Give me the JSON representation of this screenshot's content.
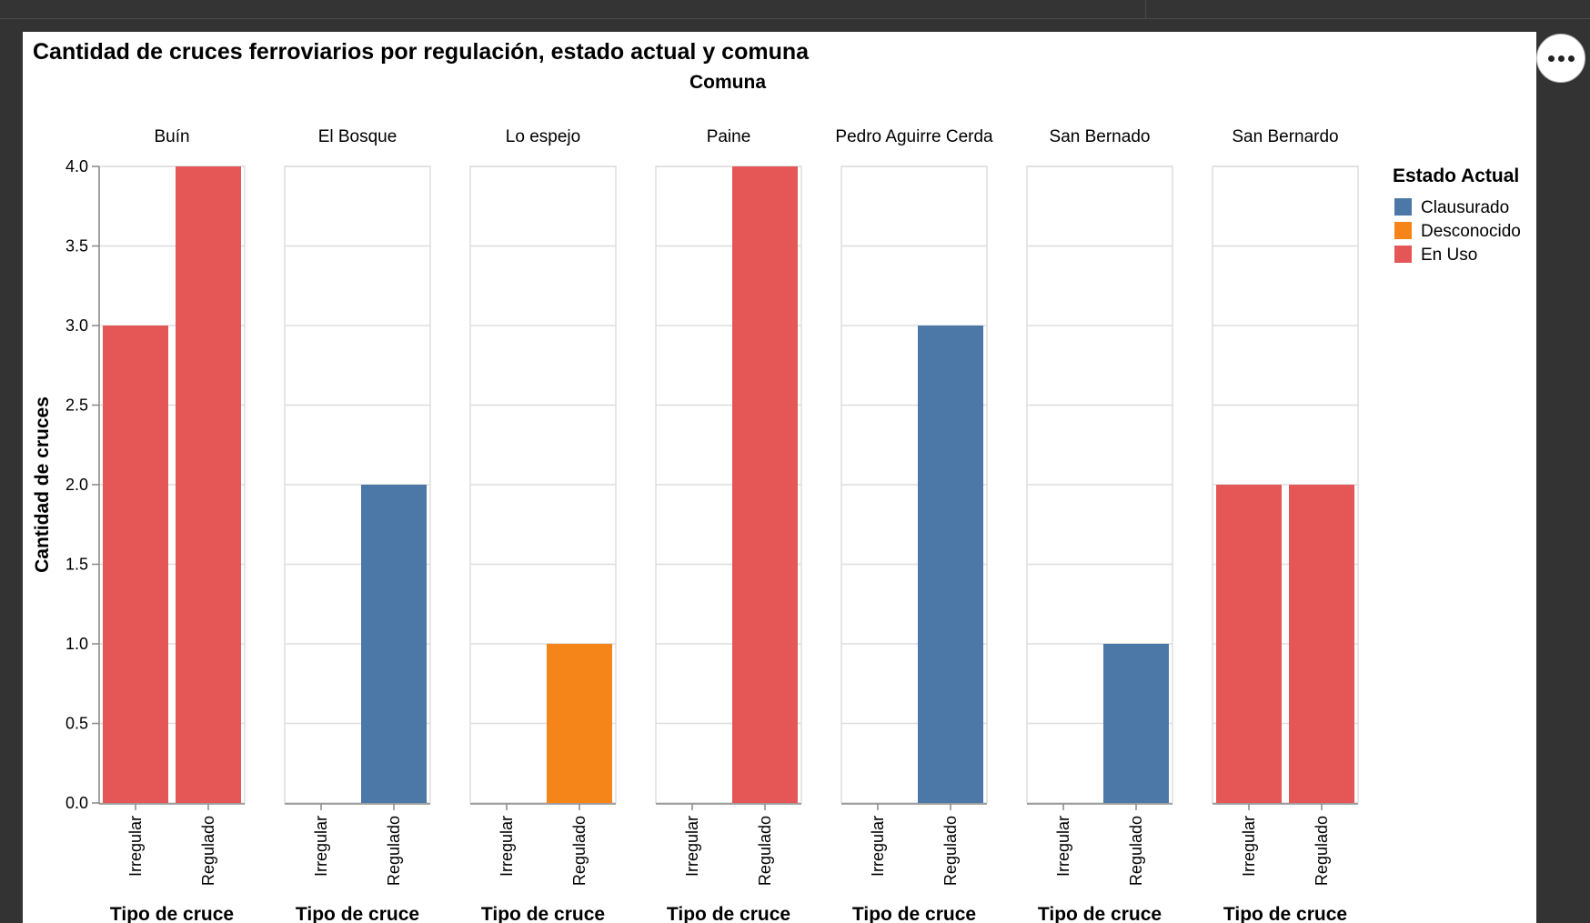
{
  "chart_data": {
    "type": "bar",
    "title": "Cantidad de cruces ferroviarios por regulación, estado actual y comuna",
    "column_title": "Comuna",
    "xlabel": "Tipo de cruce",
    "ylabel": "Cantidad de cruces",
    "ylim": [
      0,
      4
    ],
    "y_ticks": [
      "0.0",
      "0.5",
      "1.0",
      "1.5",
      "2.0",
      "2.5",
      "3.0",
      "3.5",
      "4.0"
    ],
    "grid": true,
    "categories": [
      "Irregular",
      "Regulado"
    ],
    "legend": {
      "title": "Estado Actual",
      "position": "right",
      "items": [
        {
          "label": "Clausurado",
          "color": "#4c78a8"
        },
        {
          "label": "Desconocido",
          "color": "#f58518"
        },
        {
          "label": "En Uso",
          "color": "#e45756"
        }
      ]
    },
    "facets": [
      {
        "name": "Buín",
        "bars": [
          {
            "category": "Irregular",
            "value": 3,
            "status": "En Uso"
          },
          {
            "category": "Regulado",
            "value": 4,
            "status": "En Uso"
          }
        ]
      },
      {
        "name": "El Bosque",
        "bars": [
          {
            "category": "Regulado",
            "value": 2,
            "status": "Clausurado"
          }
        ]
      },
      {
        "name": "Lo espejo",
        "bars": [
          {
            "category": "Regulado",
            "value": 1,
            "status": "Desconocido"
          }
        ]
      },
      {
        "name": "Paine",
        "bars": [
          {
            "category": "Regulado",
            "value": 4,
            "status": "En Uso"
          }
        ]
      },
      {
        "name": "Pedro Aguirre Cerda",
        "bars": [
          {
            "category": "Regulado",
            "value": 3,
            "status": "Clausurado"
          }
        ]
      },
      {
        "name": "San Bernado",
        "bars": [
          {
            "category": "Regulado",
            "value": 1,
            "status": "Clausurado"
          }
        ]
      },
      {
        "name": "San Bernardo",
        "bars": [
          {
            "category": "Irregular",
            "value": 2,
            "status": "En Uso"
          },
          {
            "category": "Regulado",
            "value": 2,
            "status": "En Uso"
          }
        ]
      }
    ]
  }
}
